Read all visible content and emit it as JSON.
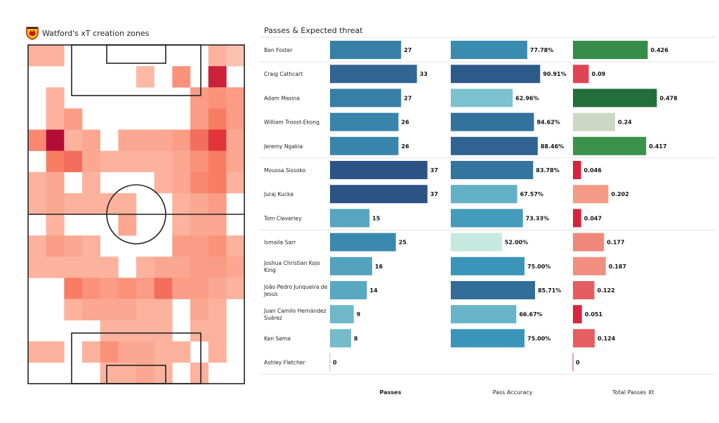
{
  "heatmap": {
    "title": "Watford's xT creation zones",
    "logo_icon": "watford-crest-icon",
    "cols": 12,
    "rows": 16,
    "cells": [
      [
        0,
        0,
        0.3
      ],
      [
        0,
        1,
        0.3
      ],
      [
        0,
        10,
        0.3
      ],
      [
        0,
        11,
        0.2
      ],
      [
        1,
        6,
        0.25
      ],
      [
        1,
        8,
        0.45
      ],
      [
        1,
        10,
        0.9
      ],
      [
        2,
        1,
        0.3
      ],
      [
        2,
        9,
        0.4
      ],
      [
        2,
        10,
        0.45
      ],
      [
        2,
        11,
        0.4
      ],
      [
        3,
        1,
        0.3
      ],
      [
        3,
        2,
        0.4
      ],
      [
        3,
        9,
        0.4
      ],
      [
        3,
        10,
        0.55
      ],
      [
        3,
        11,
        0.4
      ],
      [
        4,
        0,
        0.5
      ],
      [
        4,
        1,
        1.0
      ],
      [
        4,
        2,
        0.3
      ],
      [
        4,
        3,
        0.35
      ],
      [
        4,
        5,
        0.35
      ],
      [
        4,
        6,
        0.35
      ],
      [
        4,
        7,
        0.35
      ],
      [
        4,
        8,
        0.4
      ],
      [
        4,
        9,
        0.6
      ],
      [
        4,
        10,
        0.8
      ],
      [
        4,
        11,
        0.35
      ],
      [
        5,
        1,
        0.55
      ],
      [
        5,
        2,
        0.6
      ],
      [
        5,
        3,
        0.35
      ],
      [
        5,
        4,
        0.3
      ],
      [
        5,
        5,
        0.3
      ],
      [
        5,
        6,
        0.3
      ],
      [
        5,
        7,
        0.3
      ],
      [
        5,
        8,
        0.35
      ],
      [
        5,
        9,
        0.45
      ],
      [
        5,
        10,
        0.55
      ],
      [
        5,
        11,
        0.35
      ],
      [
        6,
        0,
        0.3
      ],
      [
        6,
        1,
        0.35
      ],
      [
        6,
        3,
        0.3
      ],
      [
        6,
        7,
        0.3
      ],
      [
        6,
        8,
        0.35
      ],
      [
        6,
        9,
        0.5
      ],
      [
        6,
        10,
        0.55
      ],
      [
        6,
        11,
        0.3
      ],
      [
        7,
        0,
        0.3
      ],
      [
        7,
        1,
        0.35
      ],
      [
        7,
        2,
        0.3
      ],
      [
        7,
        3,
        0.3
      ],
      [
        7,
        4,
        0.3
      ],
      [
        7,
        5,
        0.3
      ],
      [
        7,
        8,
        0.3
      ],
      [
        7,
        9,
        0.35
      ],
      [
        7,
        10,
        0.4
      ],
      [
        8,
        1,
        0.3
      ],
      [
        8,
        5,
        0.35
      ],
      [
        8,
        8,
        0.3
      ],
      [
        8,
        9,
        0.35
      ],
      [
        8,
        10,
        0.35
      ],
      [
        9,
        0,
        0.3
      ],
      [
        9,
        1,
        0.4
      ],
      [
        9,
        2,
        0.35
      ],
      [
        9,
        3,
        0.3
      ],
      [
        9,
        8,
        0.4
      ],
      [
        9,
        9,
        0.4
      ],
      [
        9,
        10,
        0.45
      ],
      [
        9,
        11,
        0.3
      ],
      [
        10,
        0,
        0.3
      ],
      [
        10,
        1,
        0.3
      ],
      [
        10,
        2,
        0.3
      ],
      [
        10,
        3,
        0.3
      ],
      [
        10,
        4,
        0.3
      ],
      [
        10,
        6,
        0.3
      ],
      [
        10,
        7,
        0.35
      ],
      [
        10,
        8,
        0.35
      ],
      [
        10,
        9,
        0.4
      ],
      [
        10,
        10,
        0.4
      ],
      [
        10,
        11,
        0.35
      ],
      [
        11,
        2,
        0.55
      ],
      [
        11,
        3,
        0.45
      ],
      [
        11,
        4,
        0.4
      ],
      [
        11,
        5,
        0.45
      ],
      [
        11,
        6,
        0.4
      ],
      [
        11,
        7,
        0.6
      ],
      [
        11,
        8,
        0.4
      ],
      [
        11,
        9,
        0.4
      ],
      [
        11,
        10,
        0.35
      ],
      [
        11,
        11,
        0.3
      ],
      [
        12,
        2,
        0.3
      ],
      [
        12,
        3,
        0.35
      ],
      [
        12,
        4,
        0.35
      ],
      [
        12,
        5,
        0.35
      ],
      [
        12,
        6,
        0.3
      ],
      [
        12,
        7,
        0.3
      ],
      [
        12,
        9,
        0.35
      ],
      [
        12,
        10,
        0.3
      ],
      [
        13,
        4,
        0.3
      ],
      [
        13,
        5,
        0.3
      ],
      [
        13,
        6,
        0.3
      ],
      [
        13,
        7,
        0.3
      ],
      [
        13,
        9,
        0.3
      ],
      [
        13,
        10,
        0.3
      ],
      [
        14,
        0,
        0.3
      ],
      [
        14,
        1,
        0.3
      ],
      [
        14,
        3,
        0.3
      ],
      [
        14,
        4,
        0.45
      ],
      [
        14,
        5,
        0.35
      ],
      [
        14,
        6,
        0.35
      ],
      [
        14,
        7,
        0.3
      ],
      [
        14,
        8,
        0.3
      ],
      [
        14,
        10,
        0.3
      ],
      [
        15,
        4,
        0.3
      ],
      [
        15,
        5,
        0.3
      ],
      [
        15,
        6,
        0.35
      ],
      [
        15,
        7,
        0.3
      ],
      [
        15,
        9,
        0.3
      ]
    ]
  },
  "chart_data": {
    "type": "bar",
    "title": "Passes & Expected threat",
    "columns": [
      "Passes",
      "Pass Accuracy",
      "Total Passes Xt"
    ],
    "groups": [
      1,
      4,
      3,
      6
    ],
    "players": [
      {
        "name": [
          "Ben Foster"
        ],
        "passes": 27,
        "accuracy": 77.78,
        "xt": 0.426
      },
      {
        "name": [
          "Craig Cathcart"
        ],
        "passes": 33,
        "accuracy": 90.91,
        "xt": 0.09
      },
      {
        "name": [
          "Adam Masina"
        ],
        "passes": 27,
        "accuracy": 62.96,
        "xt": 0.478
      },
      {
        "name": [
          "William Troost-Ekong"
        ],
        "passes": 26,
        "accuracy": 84.62,
        "xt": 0.24
      },
      {
        "name": [
          "Jeremy Ngakia"
        ],
        "passes": 26,
        "accuracy": 88.46,
        "xt": 0.417
      },
      {
        "name": [
          "Moussa Sissoko"
        ],
        "passes": 37,
        "accuracy": 83.78,
        "xt": 0.046
      },
      {
        "name": [
          "Juraj Kucka"
        ],
        "passes": 37,
        "accuracy": 67.57,
        "xt": 0.202
      },
      {
        "name": [
          "Tom Cleverley"
        ],
        "passes": 15,
        "accuracy": 73.33,
        "xt": 0.047
      },
      {
        "name": [
          "Ismaila Sarr"
        ],
        "passes": 25,
        "accuracy": 52.0,
        "xt": 0.177
      },
      {
        "name": [
          "Joshua Christian Kojo",
          "King"
        ],
        "passes": 16,
        "accuracy": 75.0,
        "xt": 0.187
      },
      {
        "name": [
          "João Pedro Junqueira de",
          "Jesus"
        ],
        "passes": 14,
        "accuracy": 85.71,
        "xt": 0.122
      },
      {
        "name": [
          "Juan Camilo Hernández",
          "Suárez"
        ],
        "passes": 9,
        "accuracy": 66.67,
        "xt": 0.051
      },
      {
        "name": [
          "Ken Sema"
        ],
        "passes": 8,
        "accuracy": 75.0,
        "xt": 0.124
      },
      {
        "name": [
          "Ashley Fletcher"
        ],
        "passes": 0,
        "accuracy": null,
        "xt": 0
      }
    ],
    "labels": {
      "passes": [
        "27",
        "33",
        "27",
        "26",
        "26",
        "37",
        "37",
        "15",
        "25",
        "16",
        "14",
        "9",
        "8",
        "0"
      ],
      "accuracy": [
        "77.78%",
        "90.91%",
        "62.96%",
        "84.62%",
        "88.46%",
        "83.78%",
        "67.57%",
        "73.33%",
        "52.00%",
        "75.00%",
        "85.71%",
        "66.67%",
        "75.00%",
        ""
      ],
      "xt": [
        "0.426",
        "0.09",
        "0.478",
        "0.24",
        "0.417",
        "0.046",
        "0.202",
        "0.047",
        "0.177",
        "0.187",
        "0.122",
        "0.051",
        "0.124",
        "0"
      ]
    },
    "colors": {
      "passes": [
        {
          "v": 0,
          "c": "#9fd3da"
        },
        {
          "v": 12,
          "c": "#5eafc5"
        },
        {
          "v": 25,
          "c": "#3a88ad"
        },
        {
          "v": 37,
          "c": "#2c5485"
        }
      ],
      "accuracy": [
        {
          "v": 52,
          "c": "#c5e9df"
        },
        {
          "v": 63,
          "c": "#7cc2cf"
        },
        {
          "v": 75,
          "c": "#3b95b8"
        },
        {
          "v": 91,
          "c": "#2e5a8a"
        }
      ],
      "xt_high": [
        "#cdd8c4",
        "#38914a",
        "#236d3c"
      ],
      "xt_low": [
        "#d7233c",
        "#f5a08a"
      ]
    }
  }
}
